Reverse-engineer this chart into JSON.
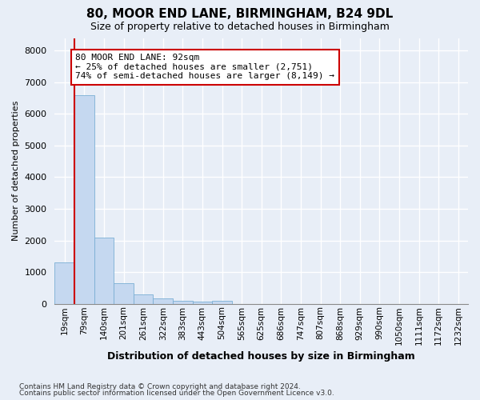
{
  "title": "80, MOOR END LANE, BIRMINGHAM, B24 9DL",
  "subtitle": "Size of property relative to detached houses in Birmingham",
  "xlabel": "Distribution of detached houses by size in Birmingham",
  "ylabel": "Number of detached properties",
  "categories": [
    "19sqm",
    "79sqm",
    "140sqm",
    "201sqm",
    "261sqm",
    "322sqm",
    "383sqm",
    "443sqm",
    "504sqm",
    "565sqm",
    "625sqm",
    "686sqm",
    "747sqm",
    "807sqm",
    "868sqm",
    "929sqm",
    "990sqm",
    "1050sqm",
    "1111sqm",
    "1172sqm",
    "1232sqm"
  ],
  "values": [
    1300,
    6600,
    2080,
    650,
    300,
    160,
    90,
    70,
    100,
    0,
    0,
    0,
    0,
    0,
    0,
    0,
    0,
    0,
    0,
    0,
    0
  ],
  "bar_color": "#c5d8f0",
  "bar_edge_color": "#7aafd4",
  "vline_color": "#cc0000",
  "vline_x": 0.5,
  "annotation_line1": "80 MOOR END LANE: 92sqm",
  "annotation_line2": "← 25% of detached houses are smaller (2,751)",
  "annotation_line3": "74% of semi-detached houses are larger (8,149) →",
  "annotation_box_facecolor": "#ffffff",
  "annotation_box_edgecolor": "#cc0000",
  "background_color": "#e8eef7",
  "grid_color": "#ffffff",
  "ylim": [
    0,
    8400
  ],
  "yticks": [
    0,
    1000,
    2000,
    3000,
    4000,
    5000,
    6000,
    7000,
    8000
  ],
  "footnote1": "Contains HM Land Registry data © Crown copyright and database right 2024.",
  "footnote2": "Contains public sector information licensed under the Open Government Licence v3.0."
}
